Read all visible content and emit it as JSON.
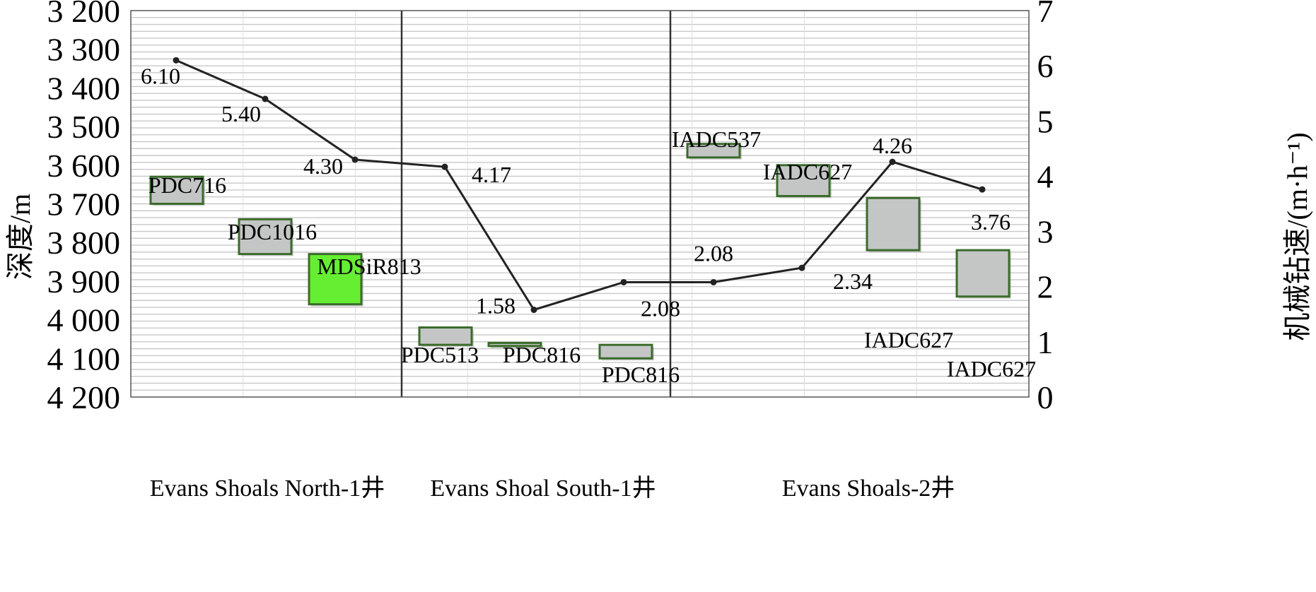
{
  "chart_data": {
    "type": "line",
    "title": "",
    "ylabel_left": "深度/m",
    "ylabel_right": "机械钻速/(m·h⁻¹)",
    "left_axis": {
      "range": [
        3200,
        4200
      ],
      "inverted": true,
      "ticks": [
        3200,
        3300,
        3400,
        3500,
        3600,
        3700,
        3800,
        3900,
        4000,
        4100,
        4200
      ],
      "tick_labels": [
        "3 200",
        "3 300",
        "3 400",
        "3 500",
        "3 600",
        "3 700",
        "3 800",
        "3 900",
        "4 000",
        "4 100",
        "4 200"
      ]
    },
    "right_axis": {
      "range": [
        0,
        7
      ],
      "ticks": [
        0,
        1,
        2,
        3,
        4,
        5,
        6,
        7
      ],
      "tick_labels": [
        "0",
        "1",
        "2",
        "3",
        "4",
        "5",
        "6",
        "7"
      ]
    },
    "grid": true,
    "wells": [
      {
        "name": "Evans Shoals North-1井"
      },
      {
        "name": "Evans Shoal South-1井"
      },
      {
        "name": "Evans Shoals-2井"
      }
    ],
    "rop_series": {
      "name": "",
      "values": [
        6.1,
        5.4,
        4.3,
        4.17,
        1.58,
        2.08,
        2.08,
        2.34,
        4.26,
        3.76
      ],
      "labels": [
        "6.10",
        "5.40",
        "4.30",
        "4.17",
        "1.58",
        "2.08",
        "2.08",
        "2.34",
        "4.26",
        "3.76"
      ]
    },
    "bit_intervals": [
      {
        "bit": "PDC716",
        "top_m": 3630,
        "bottom_m": 3700,
        "highlight": false
      },
      {
        "bit": "PDC1016",
        "top_m": 3740,
        "bottom_m": 3830,
        "highlight": false
      },
      {
        "bit": "MDSiR813",
        "top_m": 3830,
        "bottom_m": 3960,
        "highlight": true
      },
      {
        "bit": "PDC513",
        "top_m": 4020,
        "bottom_m": 4065,
        "highlight": false
      },
      {
        "bit": "PDC816",
        "top_m": 4060,
        "bottom_m": 4068,
        "highlight": false
      },
      {
        "bit": "PDC816",
        "top_m": 4065,
        "bottom_m": 4100,
        "highlight": false
      },
      {
        "bit": "IADC537",
        "top_m": 3545,
        "bottom_m": 3580,
        "highlight": false
      },
      {
        "bit": "IADC627",
        "top_m": 3600,
        "bottom_m": 3680,
        "highlight": false
      },
      {
        "bit": "IADC627",
        "top_m": 3685,
        "bottom_m": 3820,
        "highlight": false
      },
      {
        "bit": "IADC627",
        "top_m": 3820,
        "bottom_m": 3940,
        "highlight": false
      }
    ],
    "colors": {
      "line": "#222222",
      "grid": "#c8c8c8",
      "bit_fill": "#c4c6c6",
      "bit_border": "#3a6b2a",
      "bit_highlight_fill": "#66ee33",
      "separator": "#333333"
    }
  }
}
